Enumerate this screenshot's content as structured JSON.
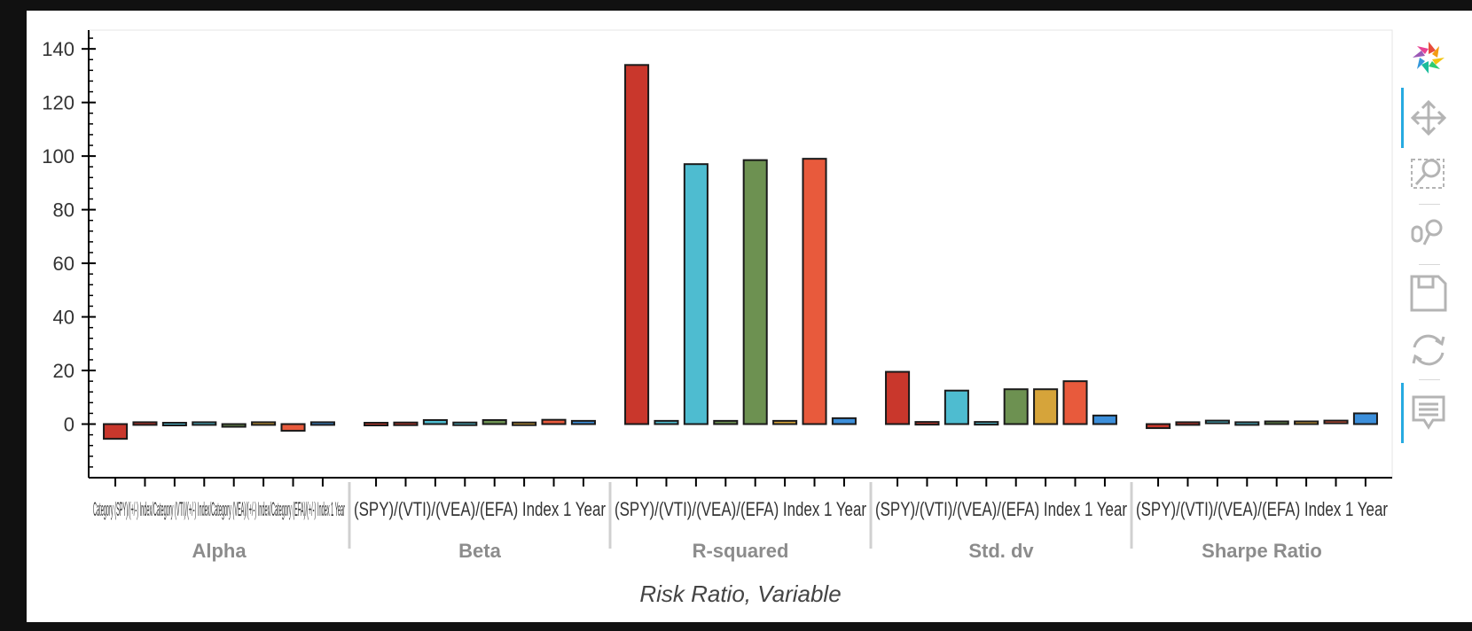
{
  "chart_data": {
    "type": "bar",
    "xlabel": "Risk Ratio, Variable",
    "ylabel": "",
    "title": "",
    "ylim": [
      -20,
      147
    ],
    "yticks": [
      0,
      20,
      40,
      60,
      80,
      100,
      120,
      140
    ],
    "groups": [
      "Alpha",
      "Beta",
      "R-squared",
      "Std. dv",
      "Sharpe Ratio"
    ],
    "variables": [
      "Category (SPY)",
      "(+/-) Index",
      "Category (VTI)",
      "(+/-) Index",
      "Category (VEA)",
      "(+/-) Index",
      "Category (EFA)",
      "(+/-) Index"
    ],
    "bar_labels_text": [
      "Category (SPY)/(+/-) Index/Category (VTI)/(+/-) Index/Category (VEA)/(+/-) Index/Category (EFA)/(+/-) Index 1 Year",
      "(SPY)/(VTI)/(VEA)/(EFA) Index 1 Year",
      "(SPY)/(VTI)/(VEA)/(EFA) Index 1 Year",
      "(SPY)/(VTI)/(VEA)/(EFA) Index 1 Year",
      "(SPY)/(VTI)/(VEA)/(EFA) Index 1 Year"
    ],
    "series": [
      {
        "group": "Alpha",
        "values": [
          -5.5,
          0.2,
          -0.8,
          0.2,
          -1.0,
          0.2,
          -2.5,
          0.2
        ]
      },
      {
        "group": "Beta",
        "values": [
          -0.6,
          0.1,
          1.5,
          0.1,
          1.5,
          0.1,
          1.6,
          1.2
        ]
      },
      {
        "group": "R-squared",
        "values": [
          134.0,
          1.2,
          97.0,
          1.2,
          98.5,
          1.2,
          99.0,
          2.2
        ]
      },
      {
        "group": "Std. dv",
        "values": [
          19.5,
          0.3,
          12.5,
          0.3,
          13.0,
          13.0,
          16.0,
          3.2
        ]
      },
      {
        "group": "Sharpe Ratio",
        "values": [
          -1.5,
          0.2,
          0.8,
          0.2,
          1.0,
          1.0,
          0.8,
          4.0
        ]
      }
    ],
    "bar_colors": [
      [
        "#c9372c",
        "#c9372c",
        "#4ebcd0",
        "#4ebcd0",
        "#6d9151",
        "#d6a43a",
        "#e85a3c",
        "#3c8fdb"
      ],
      [
        "#c9372c",
        "#c9372c",
        "#4ebcd0",
        "#4ebcd0",
        "#6d9151",
        "#d6a43a",
        "#e85a3c",
        "#3c8fdb"
      ],
      [
        "#c9372c",
        "#4ebcd0",
        "#4ebcd0",
        "#6d9151",
        "#6d9151",
        "#d6a43a",
        "#e85a3c",
        "#3c8fdb"
      ],
      [
        "#c9372c",
        "#c9372c",
        "#4ebcd0",
        "#4ebcd0",
        "#6d9151",
        "#d6a43a",
        "#e85a3c",
        "#3c8fdb"
      ],
      [
        "#c9372c",
        "#c9372c",
        "#4ebcd0",
        "#4ebcd0",
        "#6d9151",
        "#d6a43a",
        "#e85a3c",
        "#3c8fdb"
      ]
    ],
    "grid": false,
    "legend": "none"
  },
  "toolbar": {
    "tools": [
      "bokeh-logo",
      "pan-tool",
      "box-zoom-tool",
      "wheel-zoom-tool",
      "save-tool",
      "reset-tool",
      "hover-tool"
    ]
  }
}
